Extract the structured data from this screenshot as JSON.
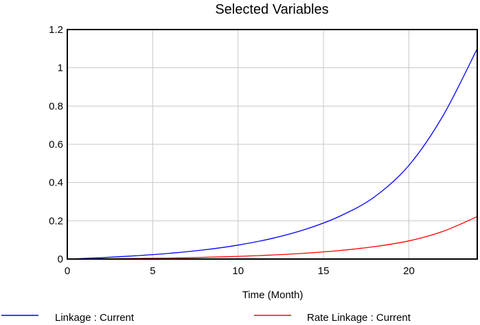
{
  "chart_data": {
    "type": "line",
    "title": "Selected Variables",
    "xlabel": "Time (Month)",
    "ylabel": "",
    "xlim": [
      0,
      24
    ],
    "ylim": [
      0,
      1.2
    ],
    "xticks": [
      0,
      5,
      10,
      15,
      20
    ],
    "yticks": [
      0,
      0.2,
      0.4,
      0.6,
      0.8,
      1,
      1.2
    ],
    "ytick_labels": [
      "0",
      "0.2",
      "0.4",
      "0.6",
      "0.8",
      "1",
      "1.2"
    ],
    "grid": true,
    "legend_position": "bottom",
    "x": [
      0,
      2,
      4,
      6,
      8,
      10,
      12,
      14,
      16,
      18,
      20,
      22,
      24
    ],
    "series": [
      {
        "name": "Linkage : Current",
        "color": "#0000ff",
        "values": [
          0.0,
          0.007,
          0.017,
          0.03,
          0.048,
          0.073,
          0.108,
          0.157,
          0.226,
          0.326,
          0.49,
          0.75,
          1.1
        ]
      },
      {
        "name": "Rate Linkage : Current",
        "color": "#ff0000",
        "values": [
          0.0,
          0.001,
          0.003,
          0.005,
          0.009,
          0.014,
          0.021,
          0.031,
          0.045,
          0.065,
          0.095,
          0.145,
          0.222
        ]
      }
    ]
  }
}
